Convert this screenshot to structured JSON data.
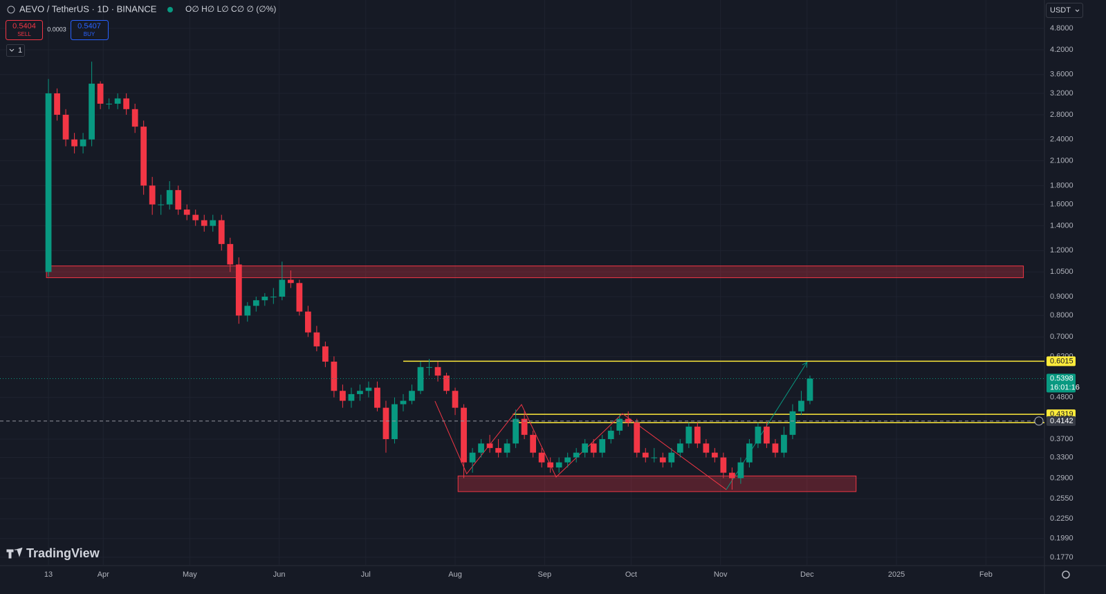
{
  "header": {
    "symbol": "AEVO / TetherUS · 1D · BINANCE",
    "ohlc": "O∅ H∅ L∅ C∅ ∅ (∅%)"
  },
  "trade": {
    "sell_price": "0.5404",
    "sell_label": "SELL",
    "spread": "0.0003",
    "buy_price": "0.5407",
    "buy_label": "BUY"
  },
  "indicator_toggle": "1",
  "currency": "USDT",
  "watermark": "TradingView",
  "chart_data": {
    "type": "candlestick",
    "log_scale": true,
    "grid": true,
    "up_color": "#089981",
    "down_color": "#f23645",
    "x": [
      0,
      3,
      6,
      9,
      12,
      15,
      18,
      21,
      24,
      27,
      30,
      33,
      36,
      39,
      42,
      45,
      48,
      51,
      54,
      57,
      60,
      63,
      66,
      69,
      72,
      75,
      78,
      81,
      84,
      87,
      90,
      93,
      96,
      99,
      102,
      105,
      108,
      111,
      114,
      117,
      120,
      123,
      126,
      129,
      132,
      135,
      138,
      141,
      144,
      147,
      150,
      153,
      156,
      159,
      162,
      165,
      168,
      171,
      174,
      177,
      180,
      183,
      186,
      189,
      192,
      195,
      198,
      201,
      204,
      207,
      210,
      213,
      216,
      219,
      222,
      225,
      228,
      231,
      234,
      237,
      240,
      243,
      246,
      249,
      252,
      255,
      258,
      261,
      264
    ],
    "open": [
      1.05,
      3.2,
      2.8,
      2.4,
      2.3,
      2.4,
      3.4,
      3.0,
      3.0,
      3.1,
      2.9,
      2.6,
      1.8,
      1.6,
      1.6,
      1.75,
      1.55,
      1.5,
      1.45,
      1.4,
      1.45,
      1.25,
      1.1,
      0.8,
      0.85,
      0.88,
      0.9,
      0.9,
      1.0,
      0.98,
      0.82,
      0.72,
      0.66,
      0.6,
      0.5,
      0.47,
      0.49,
      0.5,
      0.51,
      0.45,
      0.37,
      0.46,
      0.47,
      0.5,
      0.58,
      0.58,
      0.55,
      0.5,
      0.45,
      0.32,
      0.34,
      0.36,
      0.35,
      0.34,
      0.36,
      0.42,
      0.38,
      0.34,
      0.32,
      0.31,
      0.32,
      0.33,
      0.34,
      0.36,
      0.34,
      0.37,
      0.39,
      0.42,
      0.41,
      0.34,
      0.33,
      0.33,
      0.32,
      0.34,
      0.36,
      0.4,
      0.36,
      0.34,
      0.33,
      0.3,
      0.29,
      0.32,
      0.36,
      0.4,
      0.36,
      0.34,
      0.38,
      0.44,
      0.47
    ],
    "high": [
      3.5,
      3.3,
      2.9,
      2.5,
      2.5,
      3.9,
      3.45,
      3.1,
      3.2,
      3.2,
      3.0,
      2.7,
      1.9,
      1.7,
      1.85,
      1.8,
      1.6,
      1.55,
      1.5,
      1.5,
      1.5,
      1.3,
      1.15,
      0.87,
      0.9,
      0.92,
      0.95,
      1.12,
      1.06,
      1.0,
      0.85,
      0.75,
      0.68,
      0.62,
      0.52,
      0.51,
      0.52,
      0.53,
      0.53,
      0.47,
      0.48,
      0.49,
      0.52,
      0.6,
      0.61,
      0.6,
      0.56,
      0.51,
      0.46,
      0.35,
      0.37,
      0.38,
      0.37,
      0.37,
      0.445,
      0.44,
      0.39,
      0.35,
      0.33,
      0.33,
      0.34,
      0.35,
      0.37,
      0.37,
      0.38,
      0.4,
      0.43,
      0.44,
      0.42,
      0.35,
      0.35,
      0.34,
      0.35,
      0.37,
      0.41,
      0.41,
      0.37,
      0.35,
      0.34,
      0.31,
      0.33,
      0.37,
      0.41,
      0.41,
      0.37,
      0.4,
      0.46,
      0.5,
      0.55
    ],
    "low": [
      1.02,
      2.7,
      2.3,
      2.2,
      2.2,
      2.3,
      2.9,
      2.9,
      2.9,
      2.8,
      2.5,
      1.7,
      1.5,
      1.5,
      1.55,
      1.5,
      1.45,
      1.4,
      1.35,
      1.35,
      1.2,
      1.05,
      0.76,
      0.77,
      0.82,
      0.85,
      0.86,
      0.88,
      0.95,
      0.8,
      0.7,
      0.64,
      0.58,
      0.48,
      0.45,
      0.45,
      0.47,
      0.48,
      0.44,
      0.34,
      0.36,
      0.44,
      0.46,
      0.49,
      0.55,
      0.53,
      0.49,
      0.43,
      0.29,
      0.3,
      0.33,
      0.34,
      0.33,
      0.33,
      0.35,
      0.37,
      0.33,
      0.31,
      0.3,
      0.3,
      0.31,
      0.32,
      0.33,
      0.33,
      0.33,
      0.36,
      0.38,
      0.4,
      0.33,
      0.32,
      0.32,
      0.31,
      0.31,
      0.33,
      0.35,
      0.35,
      0.33,
      0.32,
      0.29,
      0.27,
      0.28,
      0.31,
      0.35,
      0.35,
      0.33,
      0.33,
      0.37,
      0.43,
      0.46
    ],
    "close": [
      3.2,
      2.8,
      2.4,
      2.3,
      2.4,
      3.4,
      3.0,
      3.0,
      3.1,
      2.9,
      2.6,
      1.8,
      1.6,
      1.6,
      1.75,
      1.55,
      1.5,
      1.45,
      1.4,
      1.45,
      1.25,
      1.1,
      0.8,
      0.85,
      0.88,
      0.9,
      0.9,
      1.0,
      0.98,
      0.82,
      0.72,
      0.66,
      0.6,
      0.5,
      0.47,
      0.49,
      0.5,
      0.51,
      0.45,
      0.37,
      0.46,
      0.47,
      0.5,
      0.58,
      0.58,
      0.55,
      0.5,
      0.45,
      0.32,
      0.34,
      0.36,
      0.35,
      0.34,
      0.36,
      0.42,
      0.38,
      0.34,
      0.32,
      0.31,
      0.32,
      0.33,
      0.34,
      0.36,
      0.34,
      0.37,
      0.39,
      0.42,
      0.41,
      0.34,
      0.33,
      0.33,
      0.32,
      0.34,
      0.36,
      0.4,
      0.36,
      0.34,
      0.33,
      0.3,
      0.29,
      0.32,
      0.36,
      0.4,
      0.36,
      0.34,
      0.38,
      0.44,
      0.47,
      0.5398
    ],
    "xlim": [
      -16.8,
      345.3
    ],
    "xticks": [
      {
        "value": 0,
        "label": "13"
      },
      {
        "value": 19,
        "label": "Apr"
      },
      {
        "value": 49,
        "label": "May"
      },
      {
        "value": 80,
        "label": "Jun"
      },
      {
        "value": 110,
        "label": "Jul"
      },
      {
        "value": 141,
        "label": "Aug"
      },
      {
        "value": 172,
        "label": "Sep"
      },
      {
        "value": 202,
        "label": "Oct"
      },
      {
        "value": 233,
        "label": "Nov"
      },
      {
        "value": 263,
        "label": "Dec"
      },
      {
        "value": 294,
        "label": "2025"
      },
      {
        "value": 325,
        "label": "Feb"
      }
    ],
    "ylim": [
      0.168,
      5.73
    ],
    "yticks": [
      {
        "value": 4.8,
        "label": "4.8000"
      },
      {
        "value": 4.2,
        "label": "4.2000"
      },
      {
        "value": 3.6,
        "label": "3.6000"
      },
      {
        "value": 3.2,
        "label": "3.2000"
      },
      {
        "value": 2.8,
        "label": "2.8000"
      },
      {
        "value": 2.4,
        "label": "2.4000"
      },
      {
        "value": 2.1,
        "label": "2.1000"
      },
      {
        "value": 1.8,
        "label": "1.8000"
      },
      {
        "value": 1.6,
        "label": "1.6000"
      },
      {
        "value": 1.4,
        "label": "1.4000"
      },
      {
        "value": 1.2,
        "label": "1.2000"
      },
      {
        "value": 1.05,
        "label": "1.0500"
      },
      {
        "value": 0.9,
        "label": "0.9000"
      },
      {
        "value": 0.8,
        "label": "0.8000"
      },
      {
        "value": 0.7,
        "label": "0.7000"
      },
      {
        "value": 0.62,
        "label": "0.6200"
      },
      {
        "value": 0.48,
        "label": "0.4800"
      },
      {
        "value": 0.37,
        "label": "0.3700"
      },
      {
        "value": 0.33,
        "label": "0.3300"
      },
      {
        "value": 0.29,
        "label": "0.2900"
      },
      {
        "value": 0.255,
        "label": "0.2550"
      },
      {
        "value": 0.225,
        "label": "0.2250"
      },
      {
        "value": 0.199,
        "label": "0.1990"
      },
      {
        "value": 0.177,
        "label": "0.1770"
      }
    ],
    "zones": [
      {
        "x": [
          -0.7,
          338
        ],
        "y": [
          1.013,
          1.09
        ]
      },
      {
        "x": [
          142,
          280
        ],
        "y": [
          0.2667,
          0.294
        ]
      }
    ],
    "hlines": [
      {
        "value": 0.6015,
        "x_start": 123,
        "color": "#ffeb3b"
      },
      {
        "value": 0.4319,
        "x_start": 161,
        "color": "#ffeb3b"
      },
      {
        "value": 0.41,
        "x_start": 162,
        "color": "#ffeb3b"
      }
    ],
    "zigzag": {
      "color": "#f23645",
      "x": [
        134,
        145,
        164,
        176,
        199,
        235
      ],
      "y": [
        0.469,
        0.298,
        0.459,
        0.292,
        0.434,
        0.27
      ]
    },
    "arrow": {
      "color": "#089981",
      "x": [
        235,
        263
      ],
      "y": [
        0.27,
        0.598
      ]
    },
    "last_price": {
      "value": 0.5398,
      "countdown": "16:01:16"
    },
    "crosshair": {
      "value": 0.4142
    }
  }
}
